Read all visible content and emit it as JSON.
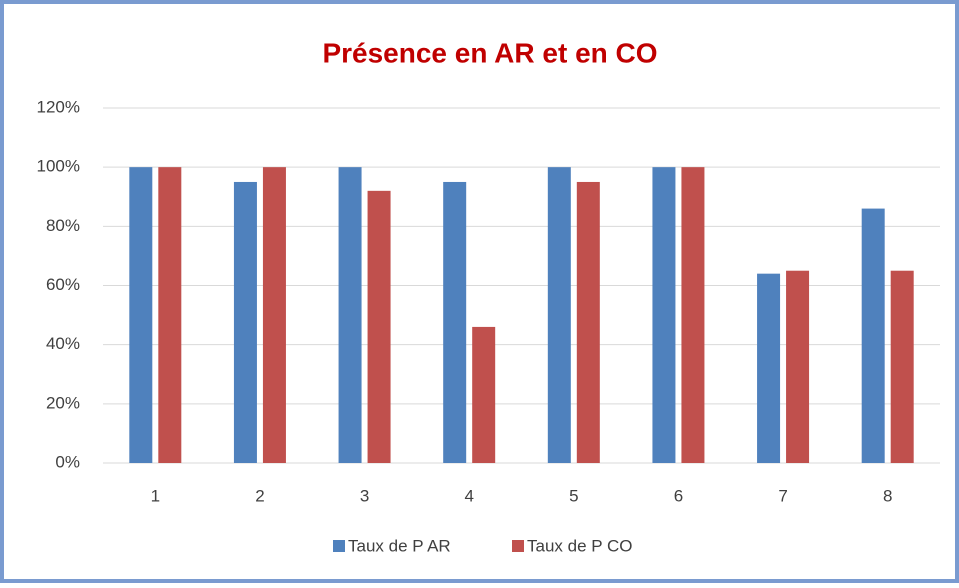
{
  "chart_data": {
    "type": "bar",
    "title": "Présence en AR et en CO",
    "categories": [
      "1",
      "2",
      "3",
      "4",
      "5",
      "6",
      "7",
      "8"
    ],
    "series": [
      {
        "name": "Taux de P AR",
        "color": "#4f81bd",
        "values": [
          100,
          95,
          100,
          95,
          100,
          100,
          64,
          86
        ]
      },
      {
        "name": "Taux de P CO",
        "color": "#c0504d",
        "values": [
          100,
          100,
          92,
          46,
          95,
          100,
          65,
          65
        ]
      }
    ],
    "ylim": [
      0,
      120
    ],
    "yticks": [
      {
        "value": 0,
        "label": "0%"
      },
      {
        "value": 20,
        "label": "20%"
      },
      {
        "value": 40,
        "label": "40%"
      },
      {
        "value": 60,
        "label": "60%"
      },
      {
        "value": 80,
        "label": "80%"
      },
      {
        "value": 100,
        "label": "100%"
      },
      {
        "value": 120,
        "label": "120%"
      }
    ],
    "grid": true,
    "legend": "bottom"
  }
}
